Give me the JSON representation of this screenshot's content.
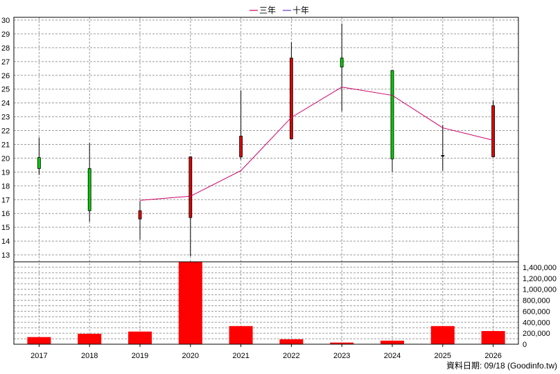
{
  "chart_data": {
    "type": "candlestick+line+bar",
    "categories": [
      "2017",
      "2018",
      "2019",
      "2020",
      "2021",
      "2022",
      "2023",
      "2024",
      "2025",
      "2026"
    ],
    "legend": [
      {
        "name": "三年",
        "color": "#cc0066"
      },
      {
        "name": "十年",
        "color": "#6633cc"
      }
    ],
    "legend_position": "top-center",
    "price_axis": {
      "ylim": [
        12.5,
        30.2
      ],
      "ticks": [
        13,
        14,
        15,
        16,
        17,
        18,
        19,
        20,
        21,
        22,
        23,
        24,
        25,
        26,
        27,
        28,
        29,
        30
      ]
    },
    "volume_axis": {
      "ylim": [
        0,
        1500000
      ],
      "ticks": [
        0,
        200000,
        400000,
        600000,
        800000,
        1000000,
        1200000,
        1400000
      ],
      "tick_labels": [
        "0",
        "200,000",
        "400,000",
        "600,000",
        "800,000",
        "1,000,000",
        "1,200,000",
        "1,400,000"
      ]
    },
    "candles": [
      {
        "open": 20.05,
        "close": 19.25,
        "high": 21.5,
        "low": 18.8
      },
      {
        "open": 19.25,
        "close": 16.2,
        "high": 21.1,
        "low": 15.4
      },
      {
        "open": 15.6,
        "close": 16.2,
        "high": 16.9,
        "low": 14.1
      },
      {
        "open": 15.7,
        "close": 20.1,
        "high": 20.1,
        "low": 12.9
      },
      {
        "open": 20.1,
        "close": 21.6,
        "high": 24.9,
        "low": 19.9
      },
      {
        "open": 21.4,
        "close": 27.25,
        "high": 28.4,
        "low": 21.4
      },
      {
        "open": 27.25,
        "close": 26.6,
        "high": 29.75,
        "low": 23.4
      },
      {
        "open": 26.35,
        "close": 19.95,
        "high": 26.35,
        "low": 19.0
      },
      {
        "open": 20.2,
        "close": 20.2,
        "high": 22.4,
        "low": 19.1
      },
      {
        "open": 20.1,
        "close": 23.8,
        "high": 24.2,
        "low": 20.1
      }
    ],
    "series": [
      {
        "name": "三年",
        "values": [
          null,
          null,
          16.95,
          17.25,
          19.1,
          22.95,
          25.15,
          24.55,
          22.2,
          21.3
        ]
      }
    ],
    "volume": [
      130000,
      190000,
      230000,
      1580000,
      330000,
      90000,
      30000,
      65000,
      330000,
      240000
    ],
    "grid": true
  },
  "colors": {
    "up": "#dd0000",
    "down": "#00cc00",
    "volume": "#ff0000",
    "line_3y": "#cc0066"
  },
  "credit": "資料日期: 09/18  (Goodinfo.tw)"
}
